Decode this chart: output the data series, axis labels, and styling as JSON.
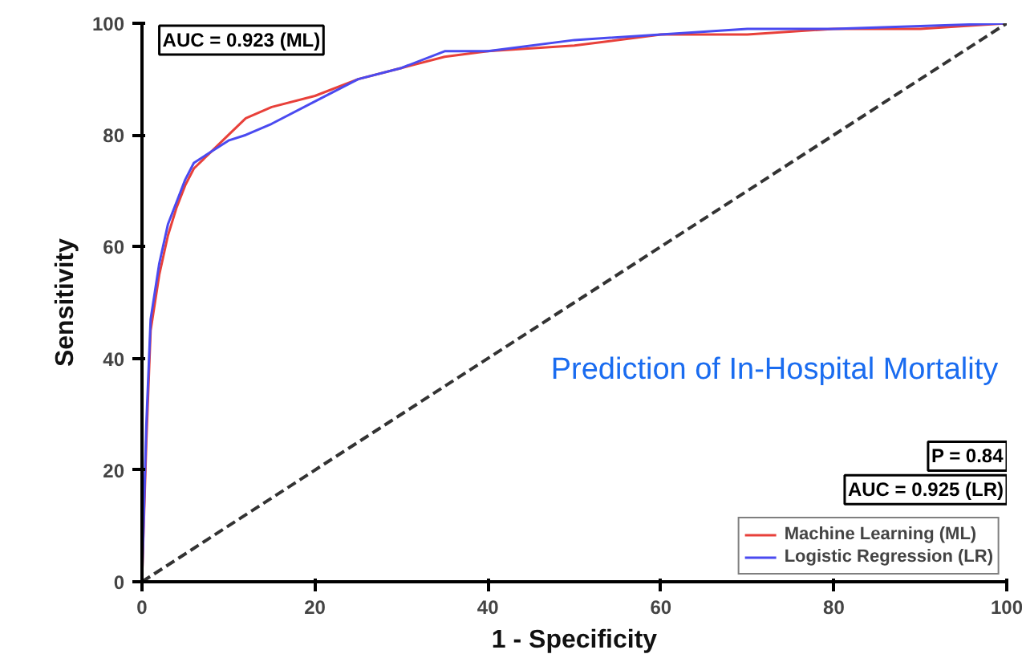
{
  "chart_data": {
    "type": "line",
    "xlabel": "1 - Specificity",
    "ylabel": "Sensitivity",
    "x": [
      0,
      0.5,
      1,
      2,
      3,
      4,
      5,
      6,
      8,
      10,
      12,
      15,
      20,
      25,
      30,
      35,
      40,
      50,
      60,
      70,
      80,
      90,
      100
    ],
    "series": [
      {
        "name": "Machine Learning (ML)",
        "color": "#e8403a",
        "values": [
          0,
          25,
          45,
          55,
          62,
          67,
          71,
          74,
          77,
          80,
          83,
          85,
          87,
          90,
          92,
          94,
          95,
          96,
          98,
          98,
          99,
          99,
          100
        ]
      },
      {
        "name": "Logistic Regression (LR)",
        "color": "#4a4af0",
        "values": [
          0,
          28,
          47,
          57,
          64,
          68,
          72,
          75,
          77,
          79,
          80,
          82,
          86,
          90,
          92,
          95,
          95,
          97,
          98,
          99,
          99,
          99.5,
          100
        ]
      },
      {
        "type": "line",
        "x": [
          0,
          100
        ],
        "color": "#333333",
        "line_style": "dashed",
        "values": [
          0,
          100
        ]
      }
    ],
    "xlim": [
      0,
      100
    ],
    "ylim": [
      0,
      100
    ],
    "xticks": [
      0,
      20,
      40,
      60,
      80,
      100
    ],
    "yticks": [
      0,
      20,
      40,
      60,
      80,
      100
    ],
    "grid": false,
    "legend": "bottom right",
    "annotations": [
      "AUC = 0.923 (ML)",
      "Prediction of In-Hospital Mortality",
      "P = 0.84",
      "AUC = 0.925 (LR)"
    ]
  }
}
